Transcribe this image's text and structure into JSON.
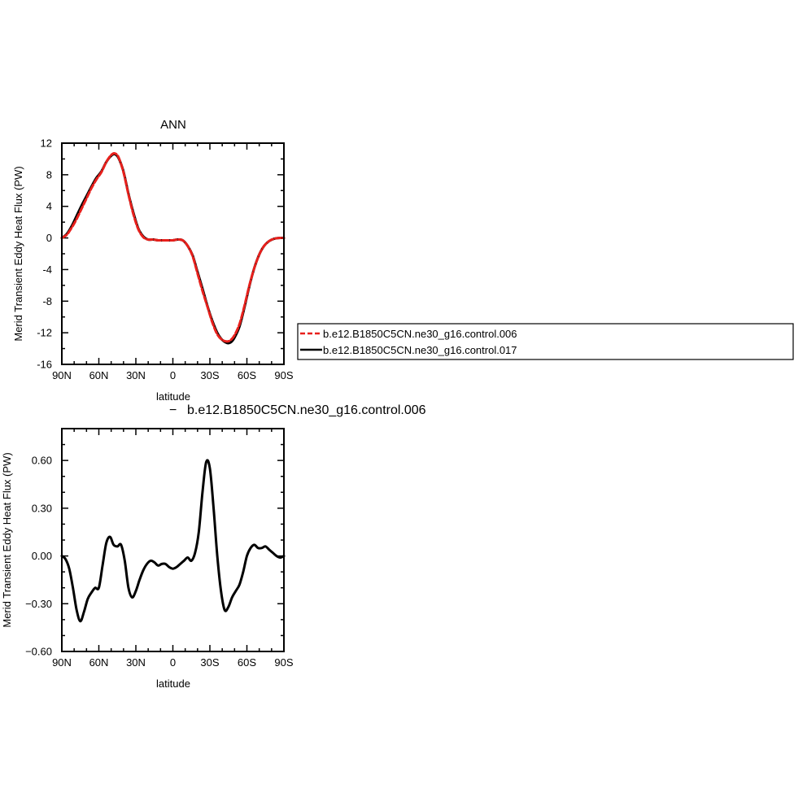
{
  "chart_data": [
    {
      "type": "line",
      "title": "ANN",
      "xlabel": "latitude",
      "ylabel": "Merid Transient Eddy Heat Flux (PW)",
      "xlim": [
        90,
        -90
      ],
      "ylim": [
        -16,
        12
      ],
      "x_ticks": [
        90,
        60,
        30,
        0,
        -30,
        -60,
        -90
      ],
      "x_tick_labels": [
        "90N",
        "60N",
        "30N",
        "0",
        "30S",
        "60S",
        "90S"
      ],
      "y_ticks": [
        -16,
        -12,
        -8,
        -4,
        0,
        4,
        8,
        12
      ],
      "y_tick_labels": [
        "-16",
        "-12",
        "-8",
        "-4",
        "0",
        "4",
        "8",
        "12"
      ],
      "legend": "outside-right",
      "series": [
        {
          "name": "b.e12.B1850C5CN.ne30_g16.control.006",
          "color": "#e8201c",
          "dash": "dashed",
          "x": [
            90,
            86,
            82,
            78,
            74,
            70,
            66,
            62,
            58,
            54,
            50,
            47,
            44,
            40,
            36,
            32,
            28,
            24,
            20,
            16,
            12,
            8,
            4,
            0,
            -4,
            -8,
            -12,
            -16,
            -20,
            -24,
            -28,
            -32,
            -36,
            -40,
            -44,
            -47,
            -50,
            -54,
            -58,
            -62,
            -66,
            -70,
            -74,
            -78,
            -82,
            -86,
            -90
          ],
          "y": [
            0.0,
            0.4,
            1.3,
            2.4,
            3.7,
            5.0,
            6.3,
            7.4,
            8.3,
            9.6,
            10.5,
            10.7,
            10.2,
            8.3,
            5.5,
            3.0,
            1.1,
            0.1,
            -0.2,
            -0.2,
            -0.3,
            -0.3,
            -0.3,
            -0.3,
            -0.2,
            -0.3,
            -1.0,
            -2.3,
            -4.5,
            -6.7,
            -8.7,
            -10.7,
            -12.2,
            -12.9,
            -13.1,
            -12.9,
            -12.3,
            -10.9,
            -8.6,
            -6.0,
            -3.8,
            -2.1,
            -1.0,
            -0.4,
            -0.1,
            0.0,
            0.0
          ]
        },
        {
          "name": "b.e12.B1850C5CN.ne30_g16.control.017",
          "color": "#000000",
          "dash": "solid",
          "x": [
            90,
            86,
            82,
            78,
            74,
            70,
            66,
            62,
            58,
            54,
            50,
            47,
            44,
            40,
            36,
            32,
            28,
            24,
            20,
            16,
            12,
            8,
            4,
            0,
            -4,
            -8,
            -12,
            -16,
            -20,
            -24,
            -28,
            -32,
            -36,
            -40,
            -44,
            -47,
            -50,
            -54,
            -58,
            -62,
            -66,
            -70,
            -74,
            -78,
            -82,
            -86,
            -90
          ],
          "y": [
            0.0,
            0.5,
            1.5,
            2.8,
            4.1,
            5.3,
            6.5,
            7.6,
            8.4,
            9.6,
            10.4,
            10.6,
            10.1,
            8.4,
            5.6,
            3.2,
            1.2,
            0.2,
            -0.2,
            -0.2,
            -0.3,
            -0.3,
            -0.3,
            -0.3,
            -0.2,
            -0.3,
            -1.0,
            -2.2,
            -4.3,
            -6.4,
            -8.6,
            -10.5,
            -12.0,
            -12.9,
            -13.3,
            -13.2,
            -12.6,
            -11.2,
            -8.8,
            -6.1,
            -3.8,
            -2.1,
            -1.0,
            -0.4,
            -0.1,
            0.0,
            0.0
          ]
        }
      ]
    },
    {
      "type": "line",
      "title": "b.e12.B1850C5CN.ne30_g16.control.006",
      "title_prefix": "−",
      "xlabel": "latitude",
      "ylabel": "Merid Transient Eddy Heat Flux (PW)",
      "xlim": [
        90,
        -90
      ],
      "ylim": [
        -0.6,
        0.8
      ],
      "x_ticks": [
        90,
        60,
        30,
        0,
        -30,
        -60,
        -90
      ],
      "x_tick_labels": [
        "90N",
        "60N",
        "30N",
        "0",
        "30S",
        "60S",
        "90S"
      ],
      "y_ticks": [
        -0.6,
        -0.3,
        0.0,
        0.3,
        0.6
      ],
      "y_tick_labels": [
        "−0.60",
        "−0.30",
        "0.00",
        "0.30",
        "0.60"
      ],
      "series": [
        {
          "color": "#000000",
          "dash": "solid",
          "x": [
            90,
            87,
            84,
            81,
            78,
            75,
            72,
            69,
            66,
            63,
            60,
            57,
            54,
            51,
            48,
            45,
            42,
            39,
            36,
            33,
            30,
            27,
            24,
            21,
            18,
            15,
            12,
            9,
            6,
            3,
            0,
            -3,
            -6,
            -9,
            -12,
            -15,
            -18,
            -21,
            -24,
            -27,
            -30,
            -33,
            -36,
            -39,
            -42,
            -45,
            -48,
            -51,
            -54,
            -57,
            -60,
            -63,
            -66,
            -69,
            -72,
            -75,
            -78,
            -81,
            -84,
            -87,
            -90
          ],
          "y": [
            0.0,
            -0.02,
            -0.08,
            -0.2,
            -0.34,
            -0.41,
            -0.35,
            -0.27,
            -0.23,
            -0.2,
            -0.2,
            -0.06,
            0.08,
            0.12,
            0.07,
            0.06,
            0.07,
            -0.03,
            -0.2,
            -0.26,
            -0.22,
            -0.15,
            -0.09,
            -0.05,
            -0.03,
            -0.04,
            -0.06,
            -0.05,
            -0.05,
            -0.07,
            -0.08,
            -0.07,
            -0.05,
            -0.03,
            -0.01,
            -0.03,
            0.02,
            0.15,
            0.4,
            0.59,
            0.55,
            0.3,
            0.0,
            -0.22,
            -0.34,
            -0.32,
            -0.26,
            -0.22,
            -0.18,
            -0.1,
            0.0,
            0.05,
            0.07,
            0.05,
            0.05,
            0.06,
            0.04,
            0.02,
            0.0,
            -0.01,
            0.0
          ]
        }
      ]
    }
  ]
}
